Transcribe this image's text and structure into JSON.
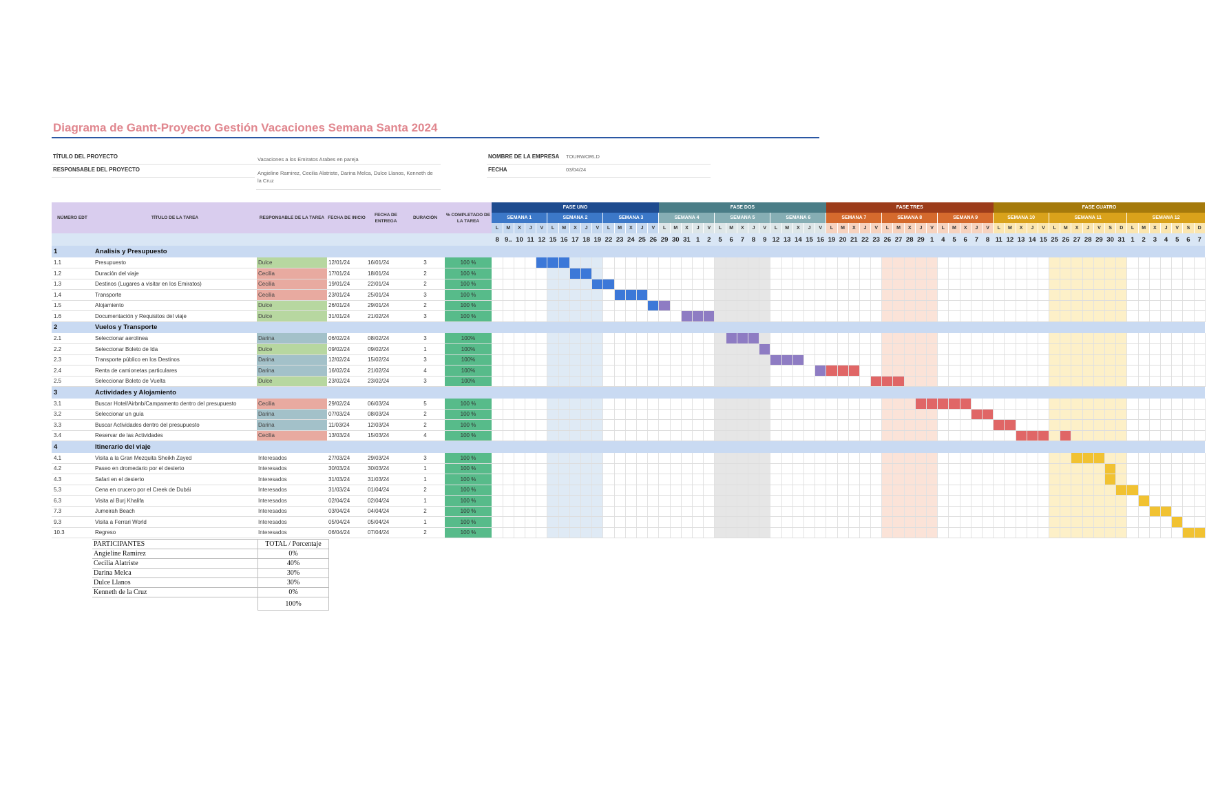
{
  "title": "Diagrama de Gantt-Proyecto Gestión Vacaciones Semana Santa 2024",
  "info": {
    "project_title_label": "TÍTULO DEL PROYECTO",
    "project_title": "Vacaciones a los Emiratos Arabes en pareja",
    "manager_label": "RESPONSABLE DEL PROYECTO",
    "manager": "Angieline Ramirez, Cecilia Alatriste, Darina Melca, Dulce Llanos, Kenneth de la Cruz",
    "company_label": "NOMBRE DE LA EMPRESA",
    "company": "TOURWORLD",
    "date_label": "FECHA",
    "date": "03/04/24"
  },
  "headers": {
    "edt": "NÚMERO EDT",
    "task": "TÍTULO DE LA TAREA",
    "owner": "RESPONSABLE DE LA TAREA",
    "start": "FECHA DE INICIO",
    "end": "FECHA DE ENTREGA",
    "duration": "DURACIÓN",
    "pct": "% COMPLETADO DE LA TAREA"
  },
  "colors": {
    "Dulce": "#b7d7a0",
    "Cecilia": "#e8aaa0",
    "Darina": "#a3c1c9",
    "Interesados": "#ffffff"
  },
  "phases": [
    {
      "label": "FASE UNO",
      "color": "#1e4b8f",
      "weeks": [
        {
          "label": "SEMANA 1",
          "color": "#3c78c8",
          "bg": "#ffffff",
          "dowbg": "#c5d8ef",
          "days": [
            "L",
            "M",
            "X",
            "J",
            "V"
          ],
          "nums": [
            "8",
            "9..",
            "10",
            "11",
            "12"
          ]
        },
        {
          "label": "SEMANA 2",
          "color": "#3c78c8",
          "bg": "#dfeaf5",
          "dowbg": "#c5d8ef",
          "days": [
            "L",
            "M",
            "X",
            "J",
            "V"
          ],
          "nums": [
            "15",
            "16",
            "17",
            "18",
            "19"
          ]
        },
        {
          "label": "SEMANA 3",
          "color": "#3c78c8",
          "bg": "#ffffff",
          "dowbg": "#c5d8ef",
          "days": [
            "L",
            "M",
            "X",
            "J",
            "V"
          ],
          "nums": [
            "22",
            "23",
            "24",
            "25",
            "26"
          ]
        }
      ]
    },
    {
      "label": "FASE DOS",
      "color": "#4a7d87",
      "weeks": [
        {
          "label": "SEMANA 4",
          "color": "#86aeb4",
          "bg": "#ffffff",
          "dowbg": "#dde6e8",
          "days": [
            "L",
            "M",
            "X",
            "J",
            "V"
          ],
          "nums": [
            "29",
            "30",
            "31",
            "1",
            "2"
          ]
        },
        {
          "label": "SEMANA 5",
          "color": "#86aeb4",
          "bg": "#e6e6e6",
          "dowbg": "#dde6e8",
          "days": [
            "L",
            "M",
            "X",
            "J",
            "V"
          ],
          "nums": [
            "5",
            "6",
            "7",
            "8",
            "9"
          ]
        },
        {
          "label": "SEMANA 6",
          "color": "#86aeb4",
          "bg": "#ffffff",
          "dowbg": "#dde6e8",
          "days": [
            "L",
            "M",
            "X",
            "J",
            "V"
          ],
          "nums": [
            "12",
            "13",
            "14",
            "15",
            "16"
          ]
        }
      ]
    },
    {
      "label": "FASE TRES",
      "color": "#9c3c1a",
      "weeks": [
        {
          "label": "SEMANA 7",
          "color": "#d56a2d",
          "bg": "#ffffff",
          "dowbg": "#f7d3bf",
          "days": [
            "L",
            "M",
            "X",
            "J",
            "V"
          ],
          "nums": [
            "19",
            "20",
            "21",
            "22",
            "23"
          ]
        },
        {
          "label": "SEMANA 8",
          "color": "#d56a2d",
          "bg": "#fbe3d8",
          "dowbg": "#f7d3bf",
          "days": [
            "L",
            "M",
            "X",
            "J",
            "V"
          ],
          "nums": [
            "26",
            "27",
            "28",
            "29",
            "1"
          ]
        },
        {
          "label": "SEMANA 9",
          "color": "#d56a2d",
          "bg": "#ffffff",
          "dowbg": "#f7d3bf",
          "days": [
            "L",
            "M",
            "X",
            "J",
            "V"
          ],
          "nums": [
            "4",
            "5",
            "6",
            "7",
            "8"
          ]
        }
      ]
    },
    {
      "label": "FASE CUATRO",
      "color": "#a57a0c",
      "weeks": [
        {
          "label": "SEMANA 10",
          "color": "#d9a21b",
          "bg": "#ffffff",
          "dowbg": "#fbe6b0",
          "days": [
            "L",
            "M",
            "X",
            "J",
            "V"
          ],
          "nums": [
            "11",
            "12",
            "13",
            "14",
            "15"
          ]
        },
        {
          "label": "SEMANA 11",
          "color": "#d9a21b",
          "bg": "#fdf0c8",
          "dowbg": "#fbe6b0",
          "days": [
            "L",
            "M",
            "X",
            "J",
            "V",
            "S",
            "D"
          ],
          "nums": [
            "25",
            "26",
            "27",
            "28",
            "29",
            "30",
            "31"
          ]
        },
        {
          "label": "SEMANA 12",
          "color": "#d9a21b",
          "bg": "#ffffff",
          "dowbg": "#fbe6b0",
          "days": [
            "L",
            "M",
            "X",
            "J",
            "V",
            "S",
            "D"
          ],
          "nums": [
            "1",
            "2",
            "3",
            "4",
            "5",
            "6",
            "7"
          ]
        }
      ]
    }
  ],
  "sections": [
    {
      "num": "1",
      "title": "Analisis y Presupuesto",
      "bar": "#3c78d8",
      "tasks": [
        {
          "edt": "1.1",
          "title": "Presupuesto",
          "owner": "Dulce",
          "start": "12/01/24",
          "end": "16/01/24",
          "dur": "3",
          "pct": "100 %",
          "bar_from": 4,
          "bar_len": 3
        },
        {
          "edt": "1.2",
          "title": "Duración del viaje",
          "owner": "Cecilia",
          "start": "17/01/24",
          "end": "18/01/24",
          "dur": "2",
          "pct": "100 %",
          "bar_from": 7,
          "bar_len": 2
        },
        {
          "edt": "1.3",
          "title": "Destinos (Lugares a visitar en los Emiratos)",
          "owner": "Cecilia",
          "start": "19/01/24",
          "end": "22/01/24",
          "dur": "2",
          "pct": "100 %",
          "bar_from": 9,
          "bar_len": 2
        },
        {
          "edt": "1.4",
          "title": "Transporte",
          "owner": "Cecilia",
          "start": "23/01/24",
          "end": "25/01/24",
          "dur": "3",
          "pct": "100 %",
          "bar_from": 11,
          "bar_len": 3
        },
        {
          "edt": "1.5",
          "title": "Alojamiento",
          "owner": "Dulce",
          "start": "26/01/24",
          "end": "29/01/24",
          "dur": "2",
          "pct": "100 %",
          "bar_from": 14,
          "bar_len": 1,
          "bar2_from": 15,
          "bar2_len": 1,
          "bar2": "#8e7cc3"
        },
        {
          "edt": "1.6",
          "title": "Documentación y Requisitos del viaje",
          "owner": "Dulce",
          "start": "31/01/24",
          "end": "21/02/24",
          "dur": "3",
          "pct": "100 %",
          "bar_from": 17,
          "bar_len": 3,
          "bar1": "#8e7cc3"
        }
      ]
    },
    {
      "num": "2",
      "title": "Vuelos y Transporte",
      "bar": "#8e7cc3",
      "tasks": [
        {
          "edt": "2.1",
          "title": "Seleccionar aerolinea",
          "owner": "Darina",
          "start": "06/02/24",
          "end": "08/02/24",
          "dur": "3",
          "pct": "100%",
          "bar_from": 21,
          "bar_len": 3
        },
        {
          "edt": "2.2",
          "title": "Seleccionar Boleto de Ida",
          "owner": "Dulce",
          "start": "09/02/24",
          "end": "09/02/24",
          "dur": "1",
          "pct": "100%",
          "bar_from": 24,
          "bar_len": 1
        },
        {
          "edt": "2.3",
          "title": "Transporte público en los Destinos",
          "owner": "Darina",
          "start": "12/02/24",
          "end": "15/02/24",
          "dur": "3",
          "pct": "100%",
          "bar_from": 25,
          "bar_len": 3
        },
        {
          "edt": "2.4",
          "title": "Renta de camionetas particulares",
          "owner": "Darina",
          "start": "16/02/24",
          "end": "21/02/24",
          "dur": "4",
          "pct": "100%",
          "bar_from": 29,
          "bar_len": 1,
          "bar2_from": 30,
          "bar2_len": 3,
          "bar2": "#e06666"
        },
        {
          "edt": "2.5",
          "title": "Seleccionar Boleto de Vuelta",
          "owner": "Dulce",
          "start": "23/02/24",
          "end": "23/02/24",
          "dur": "3",
          "pct": "100%",
          "bar_from": 34,
          "bar_len": 3,
          "bar1": "#e06666"
        }
      ]
    },
    {
      "num": "3",
      "title": "Actividades y Alojamiento",
      "bar": "#e06666",
      "tasks": [
        {
          "edt": "3.1",
          "title": "Buscar Hotel/Airbnb/Campamento dentro del presupuesto",
          "owner": "Cecilia",
          "start": "29/02/24",
          "end": "06/03/24",
          "dur": "5",
          "pct": "100 %",
          "bar_from": 38,
          "bar_len": 5
        },
        {
          "edt": "3.2",
          "title": "Seleccionar un guía",
          "owner": "Darina",
          "start": "07/03/24",
          "end": "08/03/24",
          "dur": "2",
          "pct": "100 %",
          "bar_from": 43,
          "bar_len": 2
        },
        {
          "edt": "3.3",
          "title": "Buscar Actividades dentro del presupuesto",
          "owner": "Darina",
          "start": "11/03/24",
          "end": "12/03/24",
          "dur": "2",
          "pct": "100 %",
          "bar_from": 45,
          "bar_len": 2
        },
        {
          "edt": "3.4",
          "title": "Reservar de las Actividades",
          "owner": "Cecilia",
          "start": "13/03/24",
          "end": "15/03/24",
          "dur": "4",
          "pct": "100 %",
          "bar_from": 47,
          "bar_len": 3,
          "bar2_from": 51,
          "bar2_len": 1,
          "bar2": "#e06666"
        }
      ]
    },
    {
      "num": "4",
      "title": "Itinerario del viaje",
      "bar": "#f1c232",
      "tasks": [
        {
          "edt": "4.1",
          "title": "Visita a la Gran Mezquita Sheikh Zayed",
          "owner": "Interesados",
          "start": "27/03/24",
          "end": "29/03/24",
          "dur": "3",
          "pct": "100 %",
          "bar_from": 52,
          "bar_len": 3
        },
        {
          "edt": "4.2",
          "title": "Paseo en dromedario por el desierto",
          "owner": "Interesados",
          "start": "30/03/24",
          "end": "30/03/24",
          "dur": "1",
          "pct": "100 %",
          "bar_from": 55,
          "bar_len": 1
        },
        {
          "edt": "4.3",
          "title": "Safari en el desierto",
          "owner": "Interesados",
          "start": "31/03/24",
          "end": "31/03/24",
          "dur": "1",
          "pct": "100 %",
          "bar_from": 55,
          "bar_len": 1
        },
        {
          "edt": "5.3",
          "title": "Cena en crucero por el Creek de Dubái",
          "owner": "Interesados",
          "start": "31/03/24",
          "end": "01/04/24",
          "dur": "2",
          "pct": "100 %",
          "bar_from": 56,
          "bar_len": 2
        },
        {
          "edt": "6.3",
          "title": "Visita al Burj Khalifa",
          "owner": "Interesados",
          "start": "02/04/24",
          "end": "02/04/24",
          "dur": "1",
          "pct": "100 %",
          "bar_from": 58,
          "bar_len": 1
        },
        {
          "edt": "7.3",
          "title": "Jumeirah Beach",
          "owner": "Interesados",
          "start": "03/04/24",
          "end": "04/04/24",
          "dur": "2",
          "pct": "100 %",
          "bar_from": 59,
          "bar_len": 2
        },
        {
          "edt": "9.3",
          "title": "Visita a Ferrari World",
          "owner": "Interesados",
          "start": "05/04/24",
          "end": "05/04/24",
          "dur": "1",
          "pct": "100 %",
          "bar_from": 61,
          "bar_len": 1
        },
        {
          "edt": "10.3",
          "title": "Regreso",
          "owner": "Interesados",
          "start": "06/04/24",
          "end": "07/04/24",
          "dur": "2",
          "pct": "100 %",
          "bar_from": 62,
          "bar_len": 2
        }
      ]
    }
  ],
  "participants": {
    "header_left": "PARTICIPANTES",
    "header_right": "TOTAL / Porcentaje",
    "rows": [
      {
        "name": "Angieline Ramirez",
        "value": "0%"
      },
      {
        "name": "Cecilia Alatriste",
        "value": "40%"
      },
      {
        "name": "Darina Melca",
        "value": "30%"
      },
      {
        "name": "Dulce Llanos",
        "value": "30%"
      },
      {
        "name": "Kenneth de la Cruz",
        "value": "0%"
      }
    ],
    "total": "100%"
  }
}
